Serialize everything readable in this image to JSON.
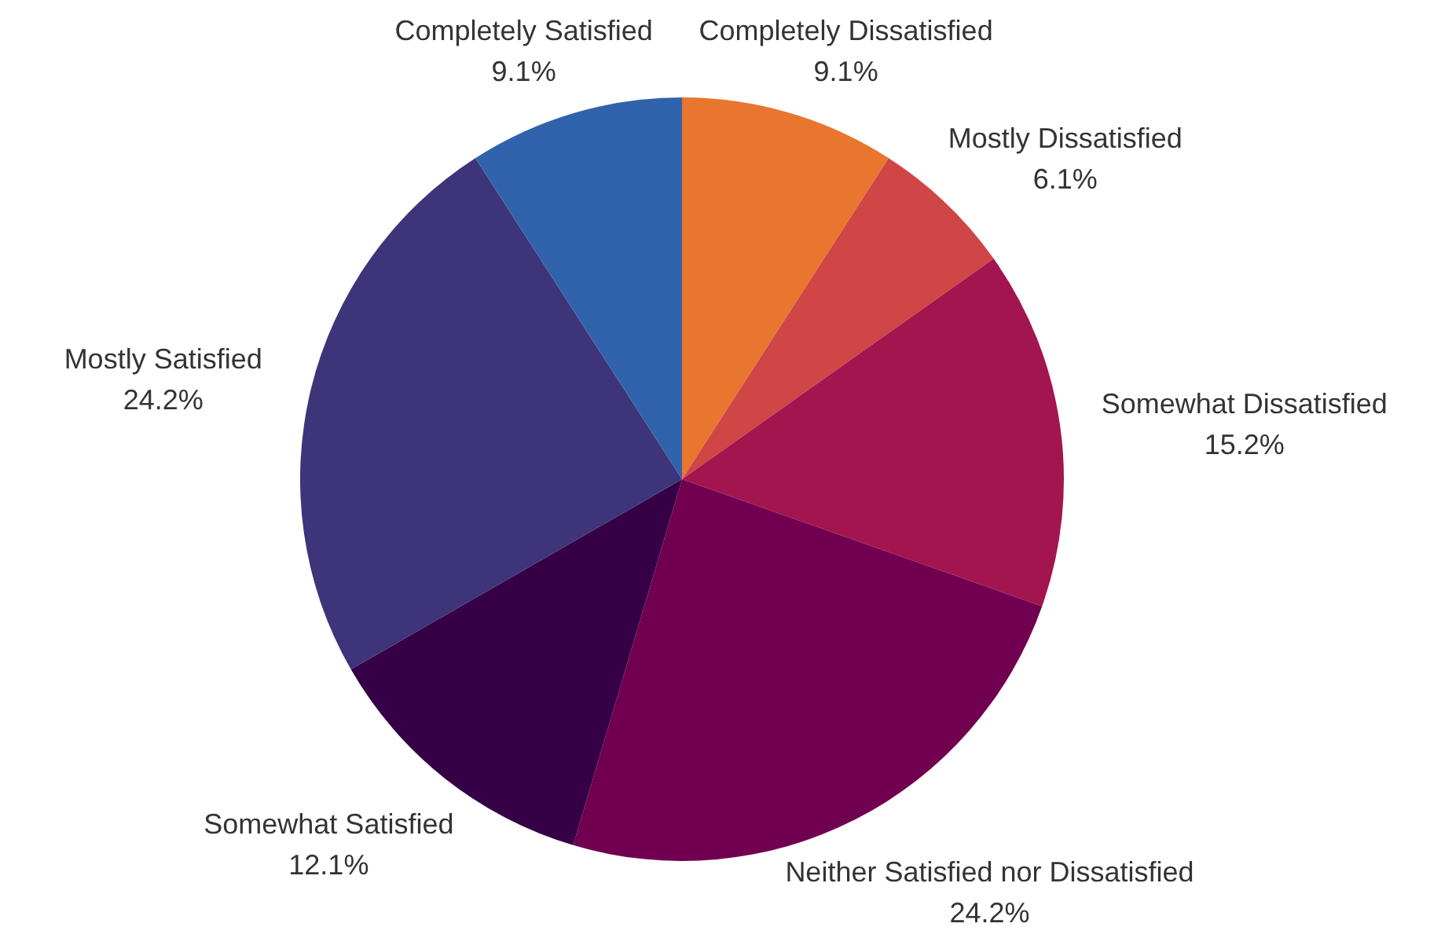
{
  "chart_data": {
    "type": "pie",
    "categories": [
      "Completely Dissatisfied",
      "Mostly Dissatisfied",
      "Somewhat Dissatisfied",
      "Neither Satisfied nor Dissatisfied",
      "Somewhat Satisfied",
      "Mostly Satisfied",
      "Completely Satisfied"
    ],
    "values": [
      9.1,
      6.1,
      15.2,
      24.2,
      12.1,
      24.2,
      9.1
    ],
    "value_labels": [
      "9.1%",
      "6.1%",
      "15.2%",
      "24.2%",
      "12.1%",
      "24.2%",
      "9.1%"
    ],
    "colors": [
      "#e8762f",
      "#d04545",
      "#a3154f",
      "#720050",
      "#360046",
      "#3d3479",
      "#3063ab"
    ],
    "legend": false
  }
}
